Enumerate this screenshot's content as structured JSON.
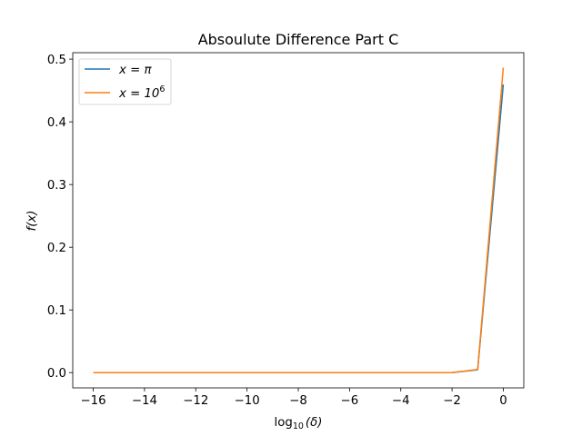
{
  "chart_data": {
    "type": "line",
    "title": "Absoulute Difference Part C",
    "xlabel_main": "log",
    "xlabel_sub": "10",
    "xlabel_arg": "(δ)",
    "ylabel": "f(x)",
    "xlim": [
      -16.8,
      0.8
    ],
    "ylim": [
      -0.0243,
      0.5103
    ],
    "x_ticks": [
      -16,
      -14,
      -12,
      -10,
      -8,
      -6,
      -4,
      -2,
      0
    ],
    "x_tick_labels": [
      "−16",
      "−14",
      "−12",
      "−10",
      "−8",
      "−6",
      "−4",
      "−2",
      "0"
    ],
    "y_ticks": [
      0.0,
      0.1,
      0.2,
      0.3,
      0.4,
      0.5
    ],
    "y_tick_labels": [
      "0.0",
      "0.1",
      "0.2",
      "0.3",
      "0.4",
      "0.5"
    ],
    "x": [
      -16,
      -15,
      -14,
      -13,
      -12,
      -11,
      -10,
      -9,
      -8,
      -7,
      -6,
      -5,
      -4,
      -3,
      -2,
      -1,
      0
    ],
    "series": [
      {
        "name": "x = π",
        "legend_prefix": "x = π",
        "legend_sup": "",
        "color": "#1f77b4",
        "values": [
          0,
          0,
          0,
          0,
          0,
          0,
          0,
          0,
          0,
          0,
          0,
          0,
          0,
          0,
          0,
          0.0045,
          0.4597
        ]
      },
      {
        "name": "x = 10^6",
        "legend_prefix": "x = 10",
        "legend_sup": "6",
        "color": "#ff7f0e",
        "values": [
          0,
          0,
          0,
          0,
          0,
          0,
          0,
          0,
          0,
          0,
          0,
          0,
          0,
          0,
          0,
          0.005,
          0.4864
        ]
      }
    ],
    "grid": false,
    "legend_position": "upper-left"
  }
}
